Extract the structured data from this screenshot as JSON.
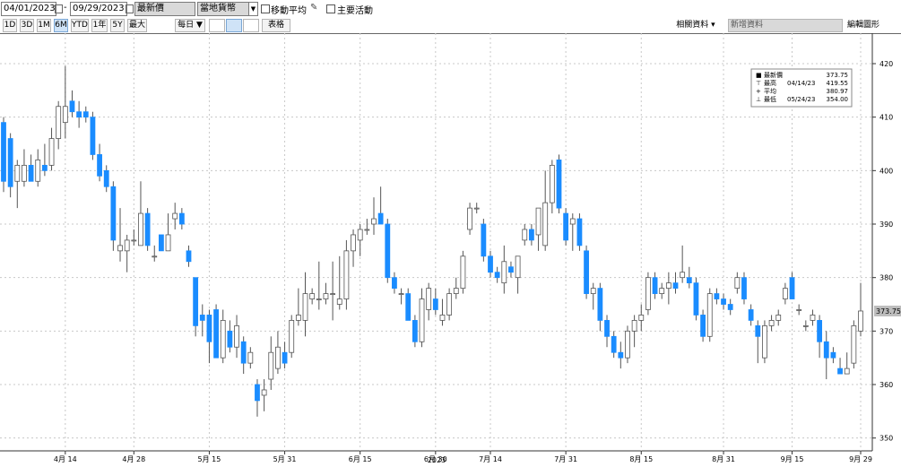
{
  "toolbar": {
    "start_date": "04/01/2023",
    "end_date": "09/29/2023",
    "price_field": "最新價",
    "currency": "當地貨幣",
    "moving_average": "移動平均",
    "key_events": "主要活動",
    "ranges": [
      "1D",
      "3D",
      "1M",
      "6M",
      "YTD",
      "1年",
      "5Y",
      "最大"
    ],
    "frequency": "每日 ▼",
    "table": "表格",
    "related": "相關資料 ▾",
    "add_data": "新增資料",
    "edit_chart": "編輯圖形"
  },
  "chart_data": {
    "type": "candlestick",
    "up_color": "#ffffff",
    "down_color": "#1a8cff",
    "outline_color": "#555555",
    "grid": true,
    "year_label": "2023",
    "categories": [
      null,
      null,
      null,
      null,
      null,
      null,
      null,
      null,
      null,
      "4月 14",
      null,
      null,
      null,
      null,
      null,
      null,
      null,
      null,
      null,
      "4月 28",
      null,
      null,
      null,
      null,
      null,
      null,
      null,
      null,
      null,
      null,
      "5月 15",
      null,
      null,
      null,
      null,
      null,
      null,
      null,
      null,
      null,
      null,
      "5月 31",
      null,
      null,
      null,
      null,
      null,
      null,
      null,
      null,
      null,
      null,
      "6月 15",
      null,
      null,
      null,
      null,
      null,
      null,
      null,
      null,
      null,
      null,
      "6月 30",
      null,
      null,
      null,
      null,
      null,
      null,
      null,
      "7月 14",
      null,
      null,
      null,
      null,
      null,
      null,
      null,
      null,
      null,
      null,
      "7月 31",
      null,
      null,
      null,
      null,
      null,
      null,
      null,
      null,
      null,
      null,
      "8月 15",
      null,
      null,
      null,
      null,
      null,
      null,
      null,
      null,
      null,
      null,
      null,
      "8月 31",
      null,
      null,
      null,
      null,
      null,
      null,
      null,
      null,
      null,
      "9月 15",
      null,
      null,
      null,
      null,
      null,
      null,
      null,
      null,
      null,
      "9月 29"
    ],
    "open": [
      409,
      406,
      398,
      398,
      401,
      398,
      401,
      401,
      406,
      409,
      413,
      411,
      411,
      410,
      403,
      400,
      397,
      385,
      385,
      387,
      386,
      392,
      384,
      388,
      385,
      391,
      392,
      385,
      380,
      373,
      373,
      374,
      365,
      370,
      367,
      368,
      364,
      360,
      358,
      361,
      363,
      366,
      366,
      372,
      372,
      376,
      376,
      376,
      377,
      375,
      376,
      385,
      387,
      389,
      390,
      392,
      390,
      380,
      377,
      377,
      372,
      368,
      374,
      376,
      372,
      373,
      377,
      378,
      389,
      393,
      390,
      384,
      381,
      379,
      382,
      380,
      387,
      389,
      388,
      386,
      394,
      402,
      392,
      390,
      391,
      385,
      377,
      378,
      372,
      369,
      366,
      365,
      370,
      372,
      374,
      380,
      377,
      378,
      379,
      380,
      380,
      379,
      373,
      369,
      377,
      376,
      375,
      378,
      380,
      374,
      371,
      365,
      371,
      372,
      376,
      380,
      374,
      371,
      372,
      372,
      368,
      366,
      363,
      362,
      364,
      370
    ],
    "high": [
      410,
      407,
      402,
      404,
      403,
      404,
      405,
      408,
      413,
      419.55,
      415,
      413,
      412,
      411,
      405,
      401,
      398,
      393,
      388,
      389,
      398,
      393,
      386,
      388,
      392,
      394,
      393,
      386,
      380,
      375,
      374,
      375,
      374,
      372,
      373,
      369,
      367,
      361,
      361,
      369,
      370,
      368,
      373,
      378,
      381,
      378,
      383,
      379,
      383,
      384,
      387,
      389,
      390,
      391,
      395,
      397,
      391,
      381,
      378,
      378,
      373,
      378,
      379,
      378,
      376,
      378,
      380,
      385,
      394,
      394,
      391,
      385,
      382,
      386,
      383,
      384,
      390,
      390,
      393,
      400,
      402,
      403,
      393,
      392,
      392,
      386,
      379,
      379,
      373,
      370,
      368,
      371,
      373,
      375,
      381,
      381,
      379,
      381,
      381,
      386,
      382,
      380,
      374,
      378,
      378,
      377,
      376,
      381,
      381,
      375,
      372,
      372,
      373,
      374,
      379,
      381,
      375,
      372,
      374,
      373,
      370,
      367,
      365,
      366,
      372,
      379
    ],
    "low": [
      396,
      395,
      393,
      397,
      398,
      397,
      399,
      400,
      404,
      406,
      410,
      408,
      409,
      402,
      398,
      396,
      385,
      383,
      381,
      386,
      386,
      385,
      383,
      385,
      385,
      389,
      389,
      382,
      369,
      369,
      364,
      365,
      364,
      366,
      365,
      362,
      363,
      354,
      355,
      359,
      362,
      363,
      365,
      371,
      369,
      375,
      374,
      375,
      372,
      374,
      374,
      382,
      384,
      388,
      388,
      390,
      379,
      377,
      375,
      372,
      367,
      367,
      372,
      373,
      371,
      372,
      376,
      377,
      388,
      392,
      383,
      380,
      379,
      377,
      380,
      377,
      386,
      386,
      385,
      385,
      392,
      392,
      386,
      385,
      385,
      376,
      374,
      370,
      367,
      365,
      363,
      364,
      367,
      370,
      373,
      376,
      376,
      375,
      377,
      379,
      378,
      372,
      368,
      368,
      375,
      374,
      373,
      377,
      375,
      371,
      364,
      364,
      370,
      371,
      375,
      376,
      373,
      370,
      371,
      365,
      361,
      364,
      362,
      362,
      363,
      369
    ],
    "close": [
      398,
      397,
      401,
      401,
      398,
      402,
      400,
      406,
      412,
      412,
      411,
      410,
      410,
      403,
      399,
      397,
      387,
      386,
      387,
      387,
      392,
      386,
      384,
      385,
      388,
      392,
      390,
      383,
      371,
      372,
      368,
      365,
      372,
      367,
      371,
      364,
      366,
      357,
      359,
      366,
      367,
      364,
      372,
      373,
      377,
      377,
      376,
      377,
      377,
      376,
      385,
      388,
      389,
      389,
      391,
      390,
      380,
      378,
      377,
      372,
      368,
      376,
      378,
      374,
      373,
      377,
      378,
      384,
      393,
      393,
      384,
      381,
      380,
      383,
      381,
      384,
      389,
      387,
      393,
      394,
      401,
      393,
      387,
      391,
      386,
      377,
      378,
      372,
      369,
      366,
      365,
      370,
      372,
      373,
      380,
      377,
      378,
      379,
      378,
      381,
      379,
      373,
      369,
      377,
      376,
      375,
      374,
      380,
      376,
      372,
      369,
      371,
      372,
      373,
      378,
      376,
      374,
      371,
      373,
      368,
      365,
      365,
      362,
      363,
      371,
      373.75
    ],
    "ylim": [
      347.6,
      425.7
    ],
    "yticks": [
      350,
      360,
      370,
      380,
      390,
      400,
      410,
      420
    ],
    "summary": {
      "last_label": "最新價",
      "last": 373.75,
      "high_label": "最高",
      "high_date": "04/14/23",
      "high": 419.55,
      "avg_label": "平均",
      "avg": 380.97,
      "low_label": "最低",
      "low_date": "05/24/23",
      "low": {
        "value": 354,
        "label": "354.00"
      }
    }
  }
}
